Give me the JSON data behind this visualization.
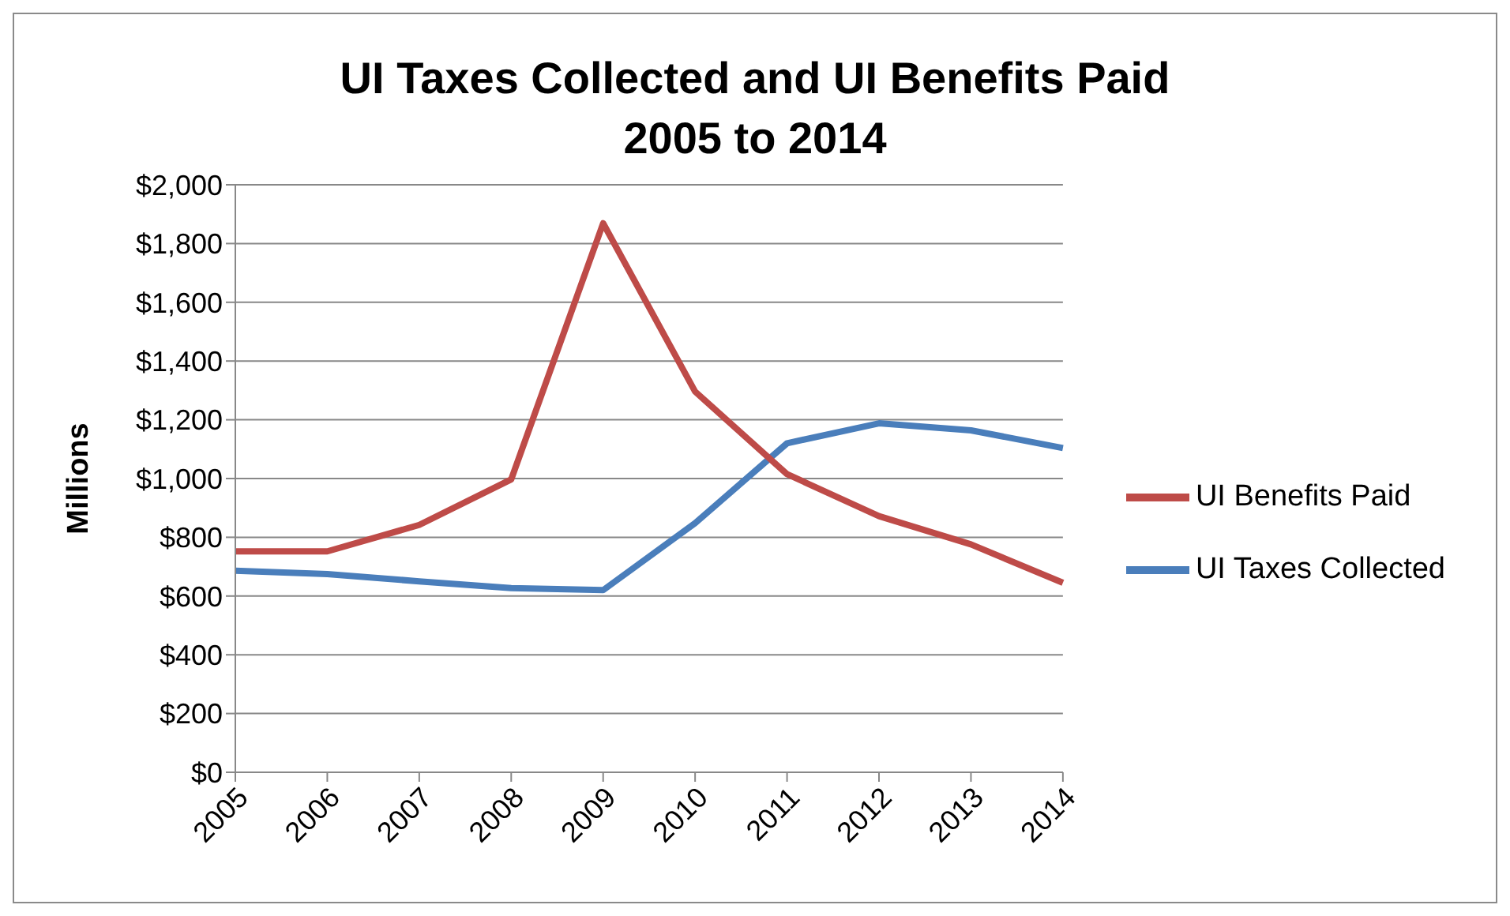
{
  "chart_data": {
    "type": "line",
    "title": "UI Taxes Collected and UI Benefits Paid\n2005 to 2014",
    "ylabel": "Millions",
    "categories": [
      "2005",
      "2006",
      "2007",
      "2008",
      "2009",
      "2010",
      "2011",
      "2012",
      "2013",
      "2014"
    ],
    "series": [
      {
        "name": "UI Taxes Collected",
        "color": "#4a7ebb",
        "values": [
          686,
          675,
          650,
          627,
          620,
          848,
          1120,
          1188,
          1164,
          1104
        ]
      },
      {
        "name": "UI Benefits Paid",
        "color": "#be4b48",
        "values": [
          752,
          752,
          842,
          997,
          1869,
          1296,
          1015,
          872,
          776,
          645
        ]
      }
    ],
    "ylim": [
      0,
      2000
    ],
    "yticks": [
      {
        "value": 0,
        "label": "$0"
      },
      {
        "value": 200,
        "label": "$200"
      },
      {
        "value": 400,
        "label": "$400"
      },
      {
        "value": 600,
        "label": "$600"
      },
      {
        "value": 800,
        "label": "$800"
      },
      {
        "value": 1000,
        "label": "$1,000"
      },
      {
        "value": 1200,
        "label": "$1,200"
      },
      {
        "value": 1400,
        "label": "$1,400"
      },
      {
        "value": 1600,
        "label": "$1,600"
      },
      {
        "value": 1800,
        "label": "$1,800"
      },
      {
        "value": 2000,
        "label": "$2,000"
      }
    ],
    "grid": "y",
    "legend": "right",
    "marker": "none",
    "line_style": "solid"
  }
}
